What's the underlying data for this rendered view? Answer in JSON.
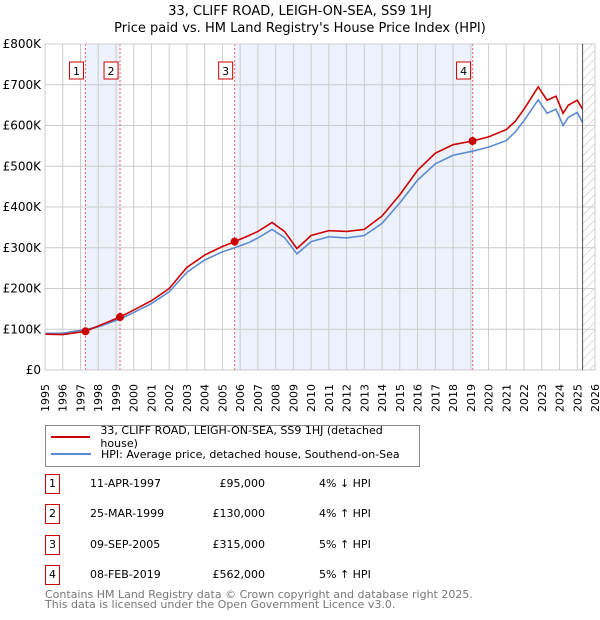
{
  "chart_data": {
    "type": "line",
    "title": "33, CLIFF ROAD, LEIGH-ON-SEA, SS9 1HJ",
    "subtitle": "Price paid vs. HM Land Registry's House Price Index (HPI)",
    "xlim": [
      1995,
      2026
    ],
    "ylim": [
      0,
      800000
    ],
    "x_ticks": [
      "1995",
      "1996",
      "1997",
      "1998",
      "1999",
      "2000",
      "2001",
      "2002",
      "2003",
      "2004",
      "2005",
      "2006",
      "2007",
      "2008",
      "2009",
      "2010",
      "2011",
      "2012",
      "2013",
      "2014",
      "2015",
      "2016",
      "2017",
      "2018",
      "2019",
      "2020",
      "2021",
      "2022",
      "2023",
      "2024",
      "2025",
      "2026"
    ],
    "y_ticks": [
      {
        "v": 0,
        "l": "£0"
      },
      {
        "v": 100000,
        "l": "£100K"
      },
      {
        "v": 200000,
        "l": "£200K"
      },
      {
        "v": 300000,
        "l": "£300K"
      },
      {
        "v": 400000,
        "l": "£400K"
      },
      {
        "v": 500000,
        "l": "£500K"
      },
      {
        "v": 600000,
        "l": "£600K"
      },
      {
        "v": 700000,
        "l": "£700K"
      },
      {
        "v": 800000,
        "l": "£800K"
      }
    ],
    "grid": true,
    "series": [
      {
        "name": "33, CLIFF ROAD, LEIGH-ON-SEA, SS9 1HJ (detached house)",
        "color": "#cc0000",
        "x": [
          1995,
          1996,
          1996.5,
          1997.28,
          1998,
          1999.23,
          2000,
          2001,
          2002,
          2003,
          2004,
          2005,
          2005.69,
          2006.5,
          2007,
          2007.8,
          2008.5,
          2009.2,
          2010,
          2011,
          2012,
          2013,
          2014,
          2015,
          2016,
          2017,
          2018,
          2019.1,
          2020,
          2021,
          2021.5,
          2022,
          2022.8,
          2023.3,
          2023.8,
          2024.2,
          2024.5,
          2025,
          2025.3
        ],
        "y": [
          88000,
          87000,
          90000,
          95000,
          108000,
          130000,
          147000,
          170000,
          200000,
          252000,
          282000,
          303000,
          315000,
          330000,
          340000,
          362000,
          340000,
          298000,
          330000,
          342000,
          340000,
          345000,
          378000,
          430000,
          490000,
          532000,
          553000,
          562000,
          572000,
          590000,
          610000,
          640000,
          695000,
          662000,
          672000,
          630000,
          650000,
          662000,
          640000
        ]
      },
      {
        "name": "HPI: Average price, detached house, Southend-on-Sea",
        "color": "#5b8bd0",
        "x": [
          1995,
          1996,
          1996.5,
          1997.28,
          1998,
          1999.23,
          2000,
          2001,
          2002,
          2003,
          2004,
          2005,
          2005.69,
          2006.5,
          2007,
          2007.8,
          2008.5,
          2009.2,
          2010,
          2011,
          2012,
          2013,
          2014,
          2015,
          2016,
          2017,
          2018,
          2019.1,
          2020,
          2021,
          2021.5,
          2022,
          2022.8,
          2023.3,
          2023.8,
          2024.2,
          2024.5,
          2025,
          2025.3
        ],
        "y": [
          90000,
          90000,
          94000,
          99000,
          106000,
          125000,
          141000,
          163000,
          192000,
          240000,
          270000,
          290000,
          300000,
          313000,
          324000,
          345000,
          325000,
          285000,
          315000,
          327000,
          324000,
          330000,
          360000,
          410000,
          466000,
          506000,
          527000,
          537000,
          547000,
          563000,
          584000,
          612000,
          663000,
          630000,
          640000,
          600000,
          620000,
          632000,
          607000
        ]
      }
    ],
    "sales": [
      {
        "n": "1",
        "x": 1997.28,
        "y": 95000
      },
      {
        "n": "2",
        "x": 1999.23,
        "y": 130000
      },
      {
        "n": "3",
        "x": 2005.69,
        "y": 315000
      },
      {
        "n": "4",
        "x": 2019.1,
        "y": 562000
      }
    ],
    "forecast_from": 2025.3
  },
  "legend": {
    "red": "33, CLIFF ROAD, LEIGH-ON-SEA, SS9 1HJ (detached house)",
    "blue": "HPI: Average price, detached house, Southend-on-Sea"
  },
  "transactions": [
    {
      "n": "1",
      "date": "11-APR-1997",
      "price": "£95,000",
      "hpi": "4% ↓ HPI"
    },
    {
      "n": "2",
      "date": "25-MAR-1999",
      "price": "£130,000",
      "hpi": "4% ↑ HPI"
    },
    {
      "n": "3",
      "date": "09-SEP-2005",
      "price": "£315,000",
      "hpi": "5% ↑ HPI"
    },
    {
      "n": "4",
      "date": "08-FEB-2019",
      "price": "£562,000",
      "hpi": "5% ↑ HPI"
    }
  ],
  "footer": {
    "line1": "Contains HM Land Registry data © Crown copyright and database right 2025.",
    "line2": "This data is licensed under the Open Government Licence v3.0."
  }
}
